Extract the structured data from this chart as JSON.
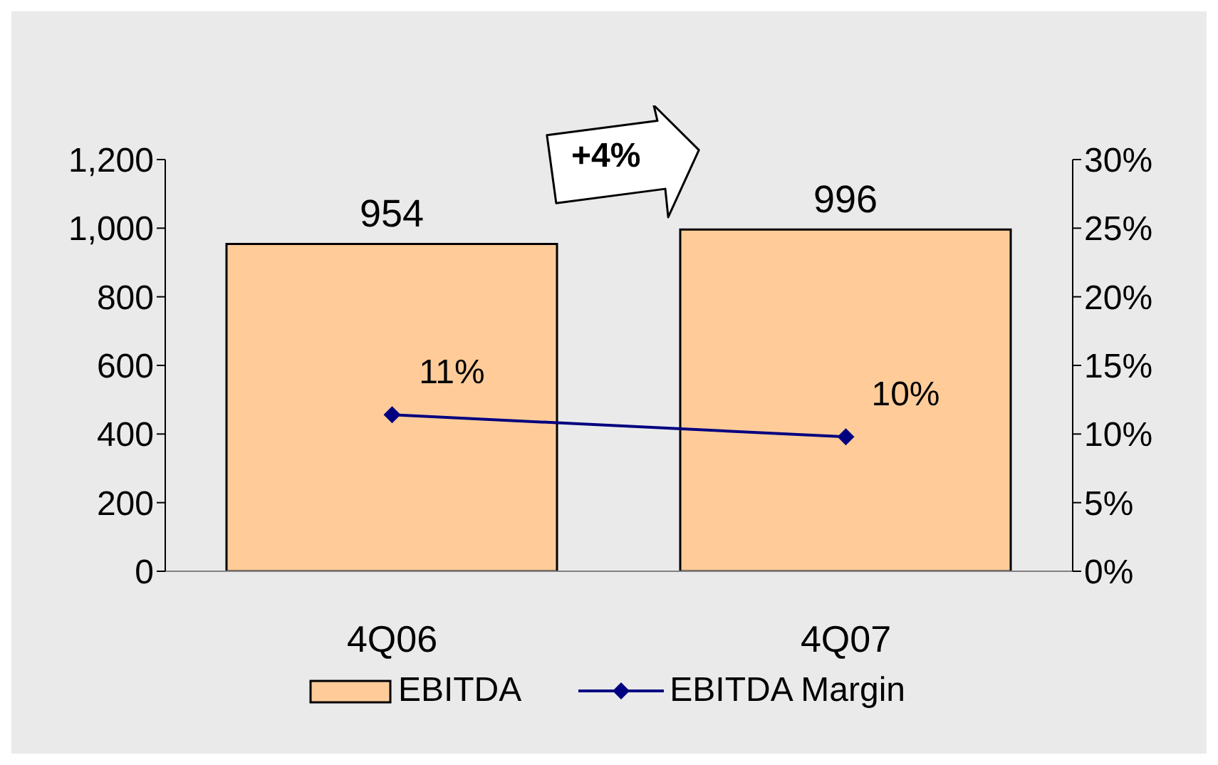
{
  "chart_data": {
    "type": "bar",
    "categories": [
      "4Q06",
      "4Q07"
    ],
    "series": [
      {
        "name": "EBITDA",
        "color": "#ffcc99",
        "values": [
          954,
          996
        ],
        "data_labels": true
      },
      {
        "name": "EBITDA Margin",
        "type": "line",
        "axis": "y2",
        "color": "#000080",
        "values": [
          11.4,
          9.8
        ],
        "value_labels": [
          "11%",
          "10%"
        ],
        "marker": "diamond"
      }
    ],
    "ylim": [
      0,
      1200
    ],
    "yticks": [
      0,
      200,
      400,
      600,
      800,
      {
        "value": 1000,
        "label": "1,000"
      },
      {
        "value": 1200,
        "label": "1,200"
      }
    ],
    "y2lim": [
      0,
      30
    ],
    "y2ticks": [
      {
        "value": 0,
        "label": "0%"
      },
      {
        "value": 5,
        "label": "5%"
      },
      {
        "value": 10,
        "label": "10%"
      },
      {
        "value": 15,
        "label": "15%"
      },
      {
        "value": 20,
        "label": "20%"
      },
      {
        "value": 25,
        "label": "25%"
      },
      {
        "value": 30,
        "label": "30%"
      }
    ],
    "annotations": [
      "+4%"
    ],
    "grid": false,
    "legend": "bottom"
  }
}
